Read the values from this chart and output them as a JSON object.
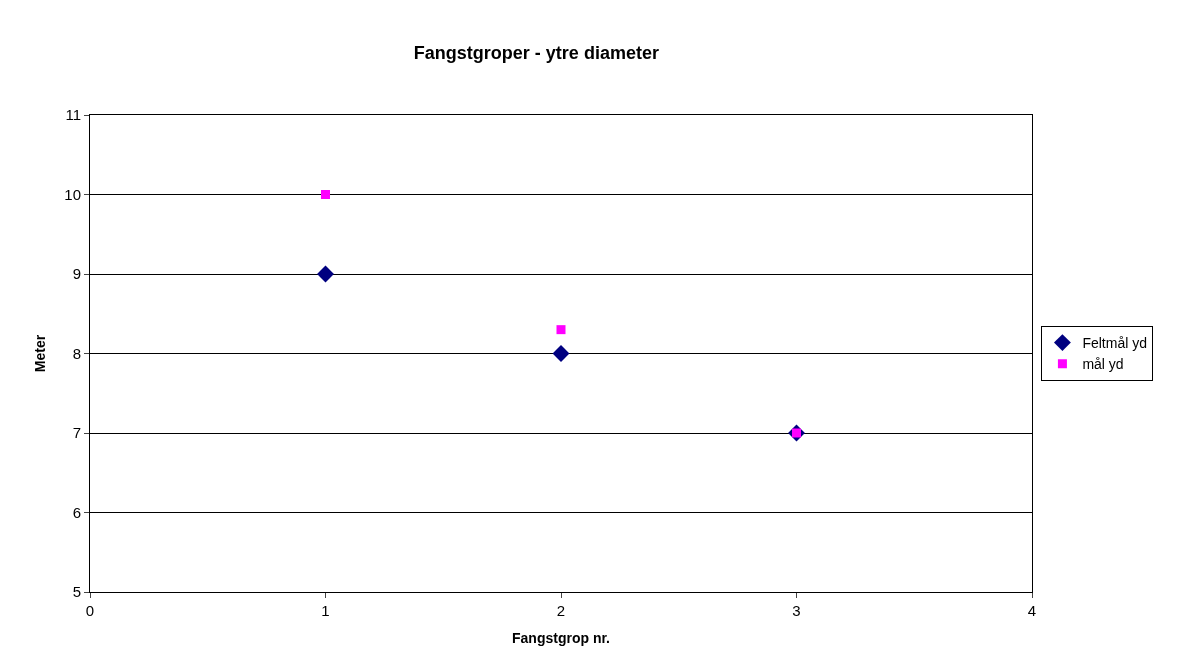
{
  "chart_data": {
    "type": "scatter",
    "title": "Fangstgroper - ytre diameter",
    "xlabel": "Fangstgrop nr.",
    "ylabel": "Meter",
    "x": [
      1,
      2,
      3
    ],
    "series": [
      {
        "name": "Feltmål yd",
        "color": "#000080",
        "marker": "diamond",
        "values": [
          9,
          8,
          7
        ]
      },
      {
        "name": "mål yd",
        "color": "#ff00ff",
        "marker": "square",
        "values": [
          10,
          8.3,
          7
        ]
      }
    ],
    "xlim": [
      0,
      4
    ],
    "xticks": [
      0,
      1,
      2,
      3,
      4
    ],
    "ylim": [
      5,
      11
    ],
    "yticks": [
      5,
      6,
      7,
      8,
      9,
      10,
      11
    ],
    "grid": "y",
    "legend": "right"
  }
}
